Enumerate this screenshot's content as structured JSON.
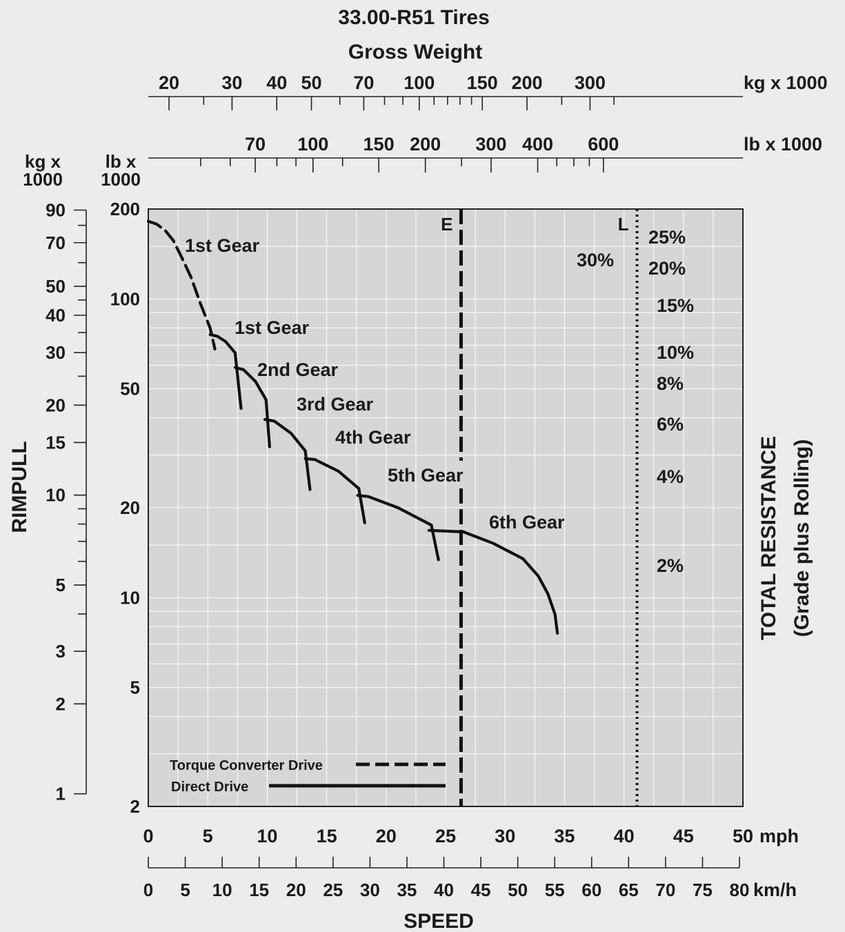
{
  "chart_data": {
    "type": "line",
    "title": "33.00-R51 Tires",
    "subtitle": "Gross Weight",
    "xlabel": "SPEED",
    "ylabel": "RIMPULL",
    "y2label": "TOTAL RESISTANCE",
    "y2label_sub": "(Grade plus Rolling)",
    "x_mph": {
      "unit": "mph",
      "ticks": [
        0,
        5,
        10,
        15,
        20,
        25,
        30,
        35,
        40,
        45,
        50
      ],
      "tick_labels": [
        "0",
        "5",
        "10",
        "15",
        "20",
        "25",
        "30",
        "35",
        "40",
        "45",
        "50"
      ],
      "range": [
        0,
        50
      ]
    },
    "x_kmh": {
      "unit": "km/h",
      "ticks": [
        0,
        5,
        10,
        15,
        20,
        25,
        30,
        35,
        40,
        45,
        50,
        55,
        60,
        65,
        70,
        75,
        80
      ],
      "tick_labels": [
        "0",
        "5",
        "10",
        "15",
        "20",
        "25",
        "30",
        "35",
        "40",
        "45",
        "50",
        "55",
        "60",
        "65",
        "70",
        "75",
        "80"
      ]
    },
    "y_lb": {
      "header": [
        "lb x",
        "1000"
      ],
      "scale": "log",
      "range": [
        2,
        200
      ],
      "ticks": [
        2,
        5,
        10,
        20,
        50,
        100,
        200
      ],
      "tick_labels": [
        "2",
        "5",
        "10",
        "20",
        "50",
        "100",
        "200"
      ]
    },
    "y_kg": {
      "header": [
        "kg x",
        "1000"
      ],
      "scale": "log",
      "ticks": [
        1,
        2,
        3,
        5,
        10,
        15,
        20,
        30,
        40,
        50,
        70,
        90
      ],
      "tick_labels": [
        "1",
        "2",
        "3",
        "5",
        "10",
        "15",
        "20",
        "30",
        "40",
        "50",
        "70",
        "90"
      ],
      "minor_ticks": [
        4,
        6,
        7,
        8,
        9,
        25,
        35,
        45,
        60,
        80
      ]
    },
    "gross_weight_kg": {
      "unit": "kg x 1000",
      "labels": [
        20,
        30,
        40,
        50,
        70,
        100,
        150,
        200,
        300
      ],
      "ticks": [
        20,
        25,
        30,
        40,
        50,
        60,
        70,
        80,
        90,
        100,
        110,
        120,
        130,
        140,
        150,
        200,
        250,
        300,
        350
      ]
    },
    "gross_weight_lb": {
      "unit": "lb x 1000",
      "labels": [
        70,
        100,
        150,
        200,
        300,
        400,
        600
      ],
      "ticks": [
        50,
        60,
        70,
        80,
        90,
        100,
        120,
        150,
        200,
        250,
        300,
        400,
        450,
        500,
        550,
        600
      ]
    },
    "markers": [
      {
        "label": "E",
        "x_mph": 26.3,
        "style": "dashed"
      },
      {
        "label": "L",
        "x_mph": 41.1,
        "style": "dotted"
      }
    ],
    "grades": [
      {
        "label": "30%"
      },
      {
        "label": "25%"
      },
      {
        "label": "20%"
      },
      {
        "label": "15%"
      },
      {
        "label": "10%"
      },
      {
        "label": "8%"
      },
      {
        "label": "6%"
      },
      {
        "label": "4%"
      },
      {
        "label": "2%"
      }
    ],
    "series": [
      {
        "name": "1st Gear",
        "drive": "Torque Converter Drive",
        "x": [
          0.0,
          0.7,
          1.4,
          2.1,
          2.8,
          3.6,
          4.4,
          5.2,
          5.6
        ],
        "y": [
          182,
          178,
          170,
          157,
          138,
          118,
          96,
          80,
          68
        ]
      },
      {
        "name": "1st Gear",
        "drive": "Direct Drive",
        "x": [
          5.2,
          5.8,
          6.5,
          7.3
        ],
        "y": [
          76,
          75,
          72,
          66
        ]
      },
      {
        "name": "2nd Gear",
        "drive": "Direct Drive",
        "x": [
          7.3,
          8.0,
          9.0,
          9.9
        ],
        "y": [
          59,
          58,
          53,
          46
        ]
      },
      {
        "name": "3rd Gear",
        "drive": "Direct Drive",
        "x": [
          9.8,
          10.6,
          12.0,
          13.2
        ],
        "y": [
          39.5,
          39,
          35.5,
          31
        ]
      },
      {
        "name": "4th Gear",
        "drive": "Direct Drive",
        "x": [
          13.2,
          14.0,
          16.0,
          17.7
        ],
        "y": [
          29.2,
          29,
          26.5,
          23.2
        ]
      },
      {
        "name": "5th Gear",
        "drive": "Direct Drive",
        "x": [
          17.6,
          18.5,
          21.0,
          23.8
        ],
        "y": [
          22.0,
          21.8,
          20.0,
          17.5
        ]
      },
      {
        "name": "6th Gear",
        "drive": "Direct Drive",
        "x": [
          23.6,
          26.5,
          29.0,
          31.5,
          32.8,
          33.6,
          34.2,
          34.4
        ],
        "y": [
          16.8,
          16.6,
          15.2,
          13.5,
          11.8,
          10.3,
          8.8,
          7.6
        ]
      }
    ],
    "gear_drop_lines": [
      {
        "x": [
          7.3,
          7.8
        ],
        "y": [
          66,
          43
        ]
      },
      {
        "x": [
          9.9,
          10.2
        ],
        "y": [
          46,
          32
        ]
      },
      {
        "x": [
          13.2,
          13.6
        ],
        "y": [
          31,
          23
        ]
      },
      {
        "x": [
          17.7,
          18.2
        ],
        "y": [
          23.2,
          17.8
        ]
      },
      {
        "x": [
          23.8,
          24.4
        ],
        "y": [
          17.5,
          13.4
        ]
      }
    ],
    "gear_labels": [
      "1st Gear",
      "1st Gear",
      "2nd Gear",
      "3rd Gear",
      "4th Gear",
      "5th Gear",
      "6th Gear"
    ],
    "legend": [
      {
        "label": "Torque Converter Drive",
        "style": "dashed"
      },
      {
        "label": "Direct Drive",
        "style": "solid"
      }
    ]
  }
}
